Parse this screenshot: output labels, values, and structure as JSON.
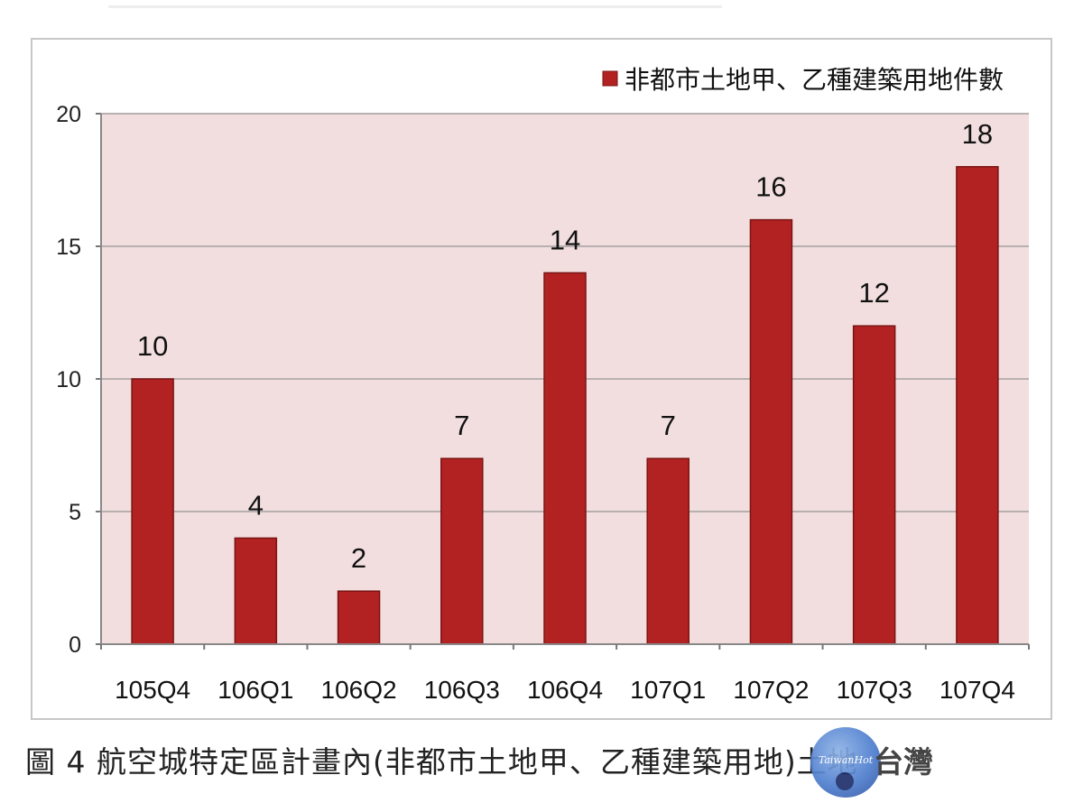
{
  "chart_data": {
    "type": "bar",
    "categories": [
      "105Q4",
      "106Q1",
      "106Q2",
      "106Q3",
      "106Q4",
      "107Q1",
      "107Q2",
      "107Q3",
      "107Q4"
    ],
    "series": [
      {
        "name": "非都市土地甲、乙種建築用地件數",
        "values": [
          10,
          4,
          2,
          7,
          14,
          7,
          16,
          12,
          18
        ]
      }
    ],
    "ylim": [
      0,
      20
    ],
    "yticks": [
      0,
      5,
      10,
      15,
      20
    ],
    "grid": true,
    "legend_position": "top-right",
    "colors": {
      "bar": "#b22222",
      "bar_edge": "#7a1414",
      "plot_background": "#f2dede",
      "grid": "#b8b0b0"
    }
  },
  "caption": "圖 4  航空城特定區計畫內(非都市土地甲、乙種建築用地)土地",
  "watermark": {
    "text": "TaiwanHot",
    "overlay_text": "台灣"
  }
}
